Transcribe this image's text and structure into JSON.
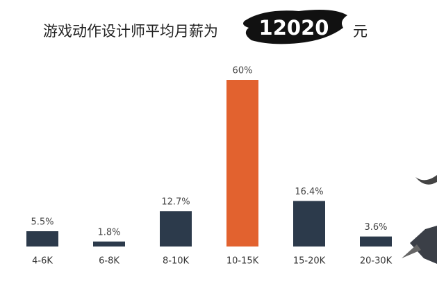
{
  "chart_data": {
    "type": "bar",
    "title": "游戏动作设计师平均月薪为",
    "highlight": "12020",
    "unit": "元",
    "categories": [
      "4-6K",
      "6-8K",
      "8-10K",
      "10-15K",
      "15-20K",
      "20-30K"
    ],
    "values": [
      5.5,
      1.8,
      12.7,
      60,
      16.4,
      3.6
    ],
    "value_labels": [
      "5.5%",
      "1.8%",
      "12.7%",
      "60%",
      "16.4%",
      "3.6%"
    ],
    "colors": [
      "#2c3a4b",
      "#2c3a4b",
      "#2c3a4b",
      "#e2622f",
      "#2c3a4b",
      "#2c3a4b"
    ]
  }
}
